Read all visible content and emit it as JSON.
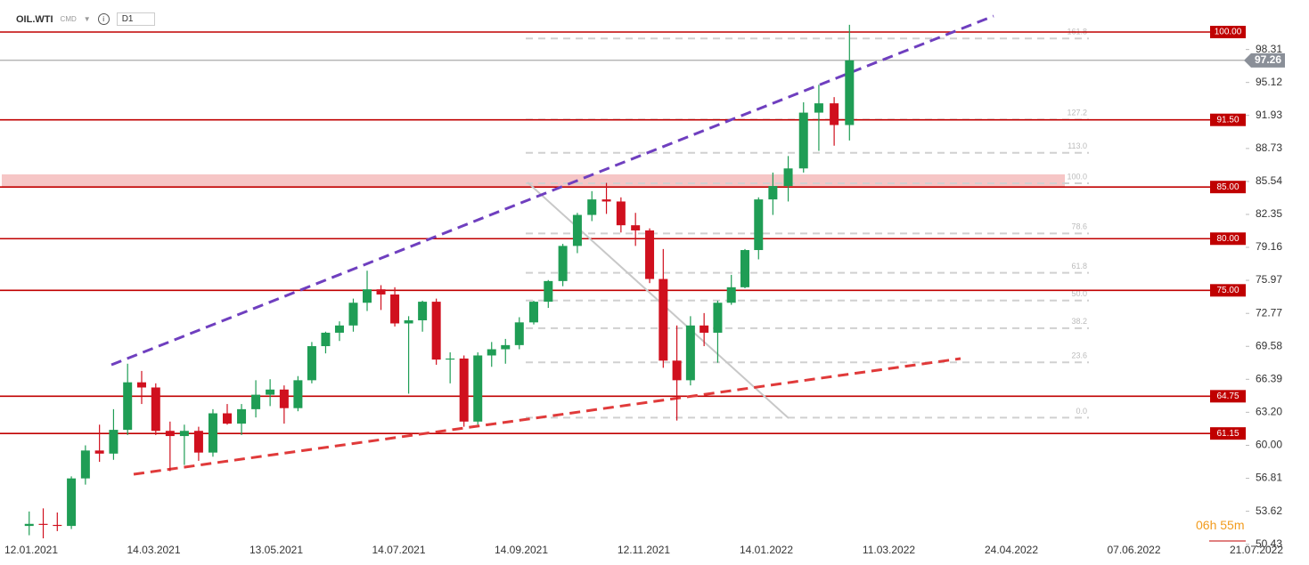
{
  "header": {
    "symbol": "OIL.WTI",
    "market": "CMD",
    "interval": "D1",
    "countdown_hours": "06h",
    "countdown_minutes": "55m"
  },
  "chart_data": {
    "type": "candlestick",
    "x": [
      "2021-01-11",
      "2021-01-18",
      "2021-01-25",
      "2021-02-01",
      "2021-02-08",
      "2021-02-15",
      "2021-02-22",
      "2021-03-01",
      "2021-03-08",
      "2021-03-15",
      "2021-03-22",
      "2021-03-29",
      "2021-04-05",
      "2021-04-12",
      "2021-04-19",
      "2021-04-26",
      "2021-05-03",
      "2021-05-10",
      "2021-05-17",
      "2021-05-24",
      "2021-05-31",
      "2021-06-07",
      "2021-06-14",
      "2021-06-21",
      "2021-06-28",
      "2021-07-05",
      "2021-07-12",
      "2021-07-19",
      "2021-07-26",
      "2021-08-02",
      "2021-08-09",
      "2021-08-16",
      "2021-08-23",
      "2021-08-30",
      "2021-09-06",
      "2021-09-13",
      "2021-09-20",
      "2021-09-27",
      "2021-10-04",
      "2021-10-11",
      "2021-10-18",
      "2021-10-25",
      "2021-11-01",
      "2021-11-08",
      "2021-11-15",
      "2021-11-22",
      "2021-11-29",
      "2021-12-06",
      "2021-12-13",
      "2021-12-20",
      "2021-12-27",
      "2022-01-03",
      "2022-01-10",
      "2022-01-17",
      "2022-01-24",
      "2022-01-31",
      "2022-02-07",
      "2022-02-14",
      "2022-02-21"
    ],
    "open": [
      52.2,
      52.4,
      52.3,
      52.2,
      56.8,
      59.5,
      59.2,
      61.5,
      66.1,
      65.6,
      61.4,
      60.9,
      61.4,
      59.3,
      63.1,
      62.1,
      63.5,
      64.9,
      65.4,
      63.6,
      66.3,
      69.6,
      70.9,
      71.6,
      73.8,
      75.1,
      74.6,
      71.8,
      72.1,
      73.9,
      68.3,
      68.4,
      62.3,
      68.7,
      69.3,
      69.7,
      71.9,
      73.9,
      75.9,
      79.3,
      82.3,
      83.8,
      83.6,
      81.3,
      80.8,
      76.1,
      68.2,
      66.3,
      71.6,
      70.9,
      73.8,
      75.3,
      78.9,
      83.8,
      85.1,
      86.8,
      92.2,
      93.1,
      91.0
    ],
    "high": [
      53.6,
      53.9,
      53.5,
      57.0,
      60.0,
      62.0,
      63.5,
      67.9,
      67.2,
      66.0,
      62.3,
      62.0,
      61.8,
      63.5,
      64.0,
      64.0,
      66.3,
      66.4,
      65.8,
      66.7,
      70.0,
      71.0,
      72.0,
      74.2,
      76.9,
      75.5,
      75.3,
      72.5,
      74.0,
      74.2,
      69.0,
      68.7,
      69.0,
      70.0,
      70.3,
      72.4,
      74.0,
      76.0,
      79.5,
      82.5,
      84.6,
      85.4,
      84.0,
      82.5,
      81.0,
      79.0,
      71.6,
      72.5,
      72.8,
      74.0,
      76.5,
      79.0,
      84.0,
      86.4,
      88.0,
      93.2,
      94.9,
      93.7,
      100.7
    ],
    "low": [
      51.3,
      51.0,
      51.7,
      51.9,
      56.2,
      58.4,
      58.6,
      61.0,
      64.0,
      61.0,
      57.5,
      58.1,
      58.5,
      58.9,
      62.0,
      61.0,
      62.7,
      63.8,
      62.1,
      63.3,
      66.0,
      68.9,
      70.1,
      71.0,
      73.0,
      73.1,
      71.5,
      65.0,
      71.0,
      67.8,
      66.0,
      61.8,
      62.0,
      67.6,
      67.9,
      69.3,
      71.7,
      73.3,
      75.4,
      78.6,
      81.7,
      82.4,
      80.6,
      79.3,
      75.7,
      67.5,
      62.4,
      65.8,
      69.6,
      68.0,
      73.6,
      75.2,
      78.0,
      82.3,
      83.6,
      86.4,
      88.5,
      89.0,
      89.5
    ],
    "close": [
      52.4,
      52.3,
      52.2,
      56.8,
      59.5,
      59.2,
      61.5,
      66.1,
      65.6,
      61.4,
      60.9,
      61.4,
      59.3,
      63.1,
      62.1,
      63.5,
      64.9,
      65.4,
      63.6,
      66.3,
      69.6,
      70.9,
      71.6,
      73.8,
      75.1,
      74.6,
      71.8,
      72.1,
      73.9,
      68.3,
      68.4,
      62.3,
      68.7,
      69.3,
      69.7,
      71.9,
      73.9,
      75.9,
      79.3,
      82.3,
      83.8,
      83.6,
      81.3,
      80.8,
      76.1,
      68.2,
      66.3,
      71.6,
      70.9,
      73.8,
      75.3,
      78.9,
      83.8,
      85.1,
      86.8,
      92.2,
      93.1,
      91.0,
      97.26
    ],
    "up_color": "#1f9d55",
    "down_color": "#d0101e",
    "ylim": [
      50.4,
      103.1
    ],
    "yticks": [
      98.31,
      95.12,
      91.93,
      88.73,
      85.54,
      82.35,
      79.16,
      75.97,
      72.77,
      69.58,
      66.39,
      {
        "value": 63.2,
        "label": "63.20"
      },
      {
        "value": 60,
        "label": "60.00"
      },
      56.81,
      53.62,
      50.43
    ],
    "xticks": [
      "12.01.2021",
      "14.03.2021",
      "13.05.2021",
      "14.07.2021",
      "14.09.2021",
      "12.11.2021",
      "14.01.2022",
      "11.03.2022",
      "24.04.2022",
      "07.06.2022",
      "21.07.2022"
    ],
    "levels": [
      {
        "value": 100,
        "label": "100.00"
      },
      {
        "value": 91.5,
        "label": "91.50"
      },
      {
        "value": 85,
        "label": "85.00"
      },
      {
        "value": 80,
        "label": "80.00"
      },
      {
        "value": 75,
        "label": "75.00"
      },
      {
        "value": 64.75,
        "label": "64.75"
      },
      {
        "value": 61.15,
        "label": "61.15"
      }
    ],
    "level_color": "#c00000",
    "fib_levels": [
      {
        "value": 99.38,
        "label": "161.8"
      },
      {
        "value": 91.53,
        "label": "127.2"
      },
      {
        "value": 88.31,
        "label": "113.0"
      },
      {
        "value": 85.36,
        "label": "100.0"
      },
      {
        "value": 80.51,
        "label": "78.6"
      },
      {
        "value": 76.7,
        "label": "61.8"
      },
      {
        "value": 74.02,
        "label": "50.0"
      },
      {
        "value": 71.34,
        "label": "38.2"
      },
      {
        "value": 68.03,
        "label": "23.6"
      },
      {
        "value": 62.68,
        "label": "0.0"
      }
    ],
    "last_price": 97.26
  }
}
